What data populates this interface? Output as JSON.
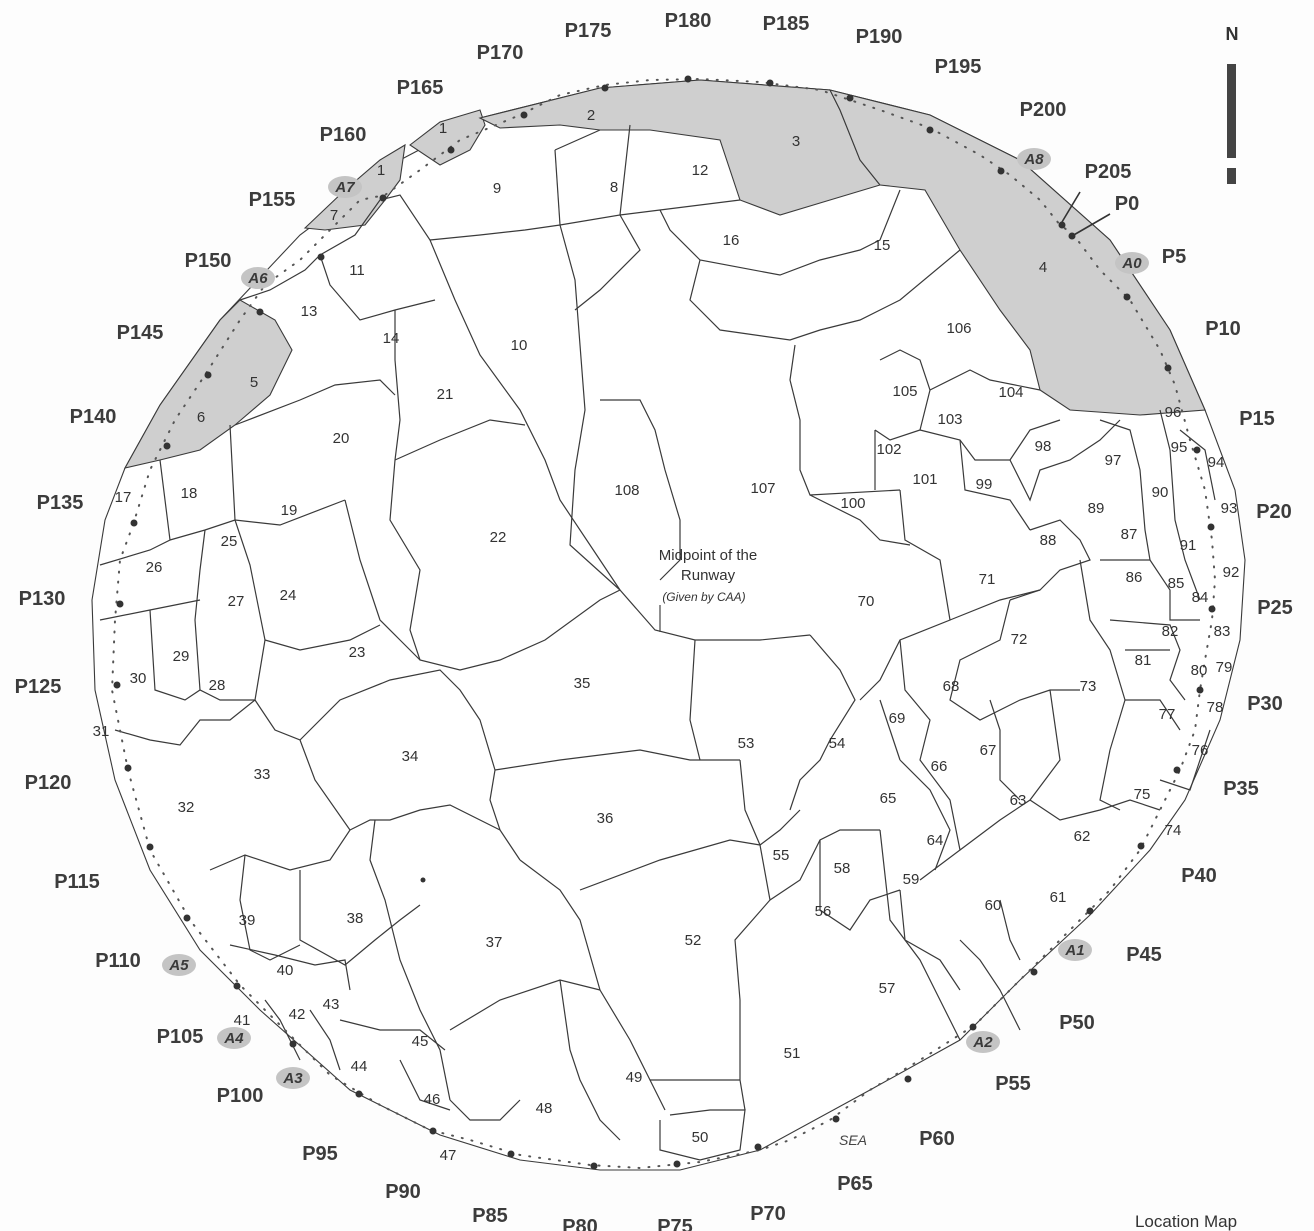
{
  "map": {
    "north_label": "N",
    "midpoint_label_line1": "Midpoint of the",
    "midpoint_label_line2": "Runway",
    "midpoint_source": "(Given by CAA)",
    "sea_label": "SEA",
    "location_map_label": "Location Map",
    "colors": {
      "shaded_zone": "#cfcfcf",
      "line": "#3a3a3a",
      "background": "#fdfdfd"
    }
  },
  "perimeter_points": [
    "P0",
    "P5",
    "P10",
    "P15",
    "P20",
    "P25",
    "P30",
    "P35",
    "P40",
    "P45",
    "P50",
    "P55",
    "P60",
    "P65",
    "P70",
    "P75",
    "P80",
    "P85",
    "P90",
    "P95",
    "P100",
    "P105",
    "P110",
    "P115",
    "P120",
    "P125",
    "P130",
    "P135",
    "P140",
    "P145",
    "P150",
    "P155",
    "P160",
    "P165",
    "P170",
    "P175",
    "P180",
    "P185",
    "P190",
    "P195",
    "P200",
    "P205"
  ],
  "anchor_points": [
    "A0",
    "A1",
    "A2",
    "A3",
    "A4",
    "A5",
    "A6",
    "A7",
    "A8"
  ],
  "zones": [
    "1",
    "1",
    "2",
    "3",
    "4",
    "5",
    "6",
    "7",
    "8",
    "9",
    "10",
    "11",
    "12",
    "13",
    "14",
    "15",
    "16",
    "17",
    "18",
    "19",
    "20",
    "21",
    "22",
    "23",
    "24",
    "25",
    "26",
    "27",
    "28",
    "29",
    "30",
    "31",
    "32",
    "33",
    "34",
    "35",
    "36",
    "37",
    "38",
    "39",
    "40",
    "41",
    "42",
    "43",
    "44",
    "45",
    "46",
    "47",
    "48",
    "49",
    "50",
    "51",
    "52",
    "53",
    "54",
    "55",
    "56",
    "57",
    "58",
    "59",
    "60",
    "61",
    "62",
    "63",
    "64",
    "65",
    "66",
    "67",
    "68",
    "69",
    "70",
    "71",
    "72",
    "73",
    "74",
    "75",
    "76",
    "77",
    "78",
    "79",
    "80",
    "81",
    "82",
    "83",
    "84",
    "85",
    "86",
    "87",
    "88",
    "89",
    "90",
    "91",
    "92",
    "93",
    "94",
    "95",
    "96",
    "97",
    "98",
    "99",
    "100",
    "101",
    "102",
    "103",
    "104",
    "105",
    "106",
    "107",
    "108"
  ]
}
